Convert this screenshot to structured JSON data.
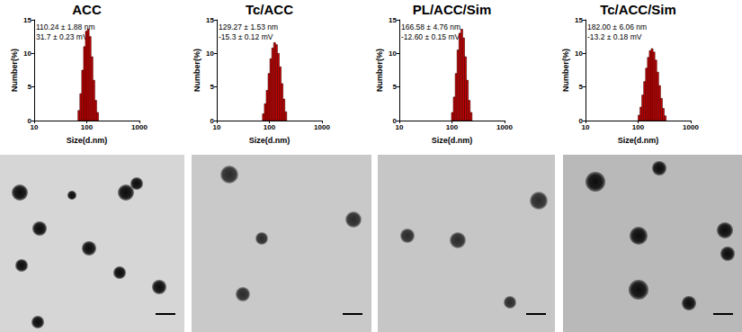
{
  "chart_data": [
    {
      "type": "histogram",
      "title": "ACC",
      "annotations": [
        "110.24 ± 1.88 nm",
        "31.7 ± 0.23 mV"
      ],
      "xlabel": "Size(d.nm)",
      "ylabel": "Number(%)",
      "bins": [
        68,
        73.8,
        80.1,
        86.9,
        94.2,
        102.2,
        110.9,
        120.4,
        130.6,
        141.7,
        153.7,
        166.8
      ],
      "values": [
        1.5,
        4.0,
        7.5,
        11.0,
        13.3,
        13.6,
        12.5,
        9.5,
        6.0,
        3.0,
        1.2
      ],
      "color": "#cc0000",
      "log": "x",
      "grid": false,
      "xlim": [
        10,
        1000
      ],
      "xticks": [
        10,
        100,
        1000
      ],
      "ylim": [
        0,
        15
      ],
      "yticks": [
        0,
        5,
        10,
        15
      ]
    },
    {
      "type": "histogram",
      "title": "Tc/ACC",
      "annotations": [
        "129.27 ± 1.53 nm",
        "-15.3 ± 0.12 mV"
      ],
      "xlabel": "Size(d.nm)",
      "ylabel": "Number(%)",
      "bins": [
        74,
        80.3,
        87.1,
        94.5,
        102.5,
        111.2,
        120.7,
        130.9,
        142.0,
        154.1,
        167.2,
        181.4,
        196.8,
        213.5
      ],
      "values": [
        1.0,
        2.5,
        4.5,
        7.0,
        9.2,
        10.8,
        11.6,
        11.3,
        10.0,
        8.0,
        5.5,
        3.2,
        1.3
      ],
      "color": "#cc0000",
      "log": "x",
      "grid": false,
      "xlim": [
        10,
        1000
      ],
      "xticks": [
        10,
        100,
        1000
      ],
      "ylim": [
        0,
        15
      ],
      "yticks": [
        0,
        5,
        10,
        15
      ]
    },
    {
      "type": "histogram",
      "title": "PL/ACC/Sim",
      "annotations": [
        "166.58 ± 4.76 nm",
        "-12.60 ± 0.15 mV"
      ],
      "xlabel": "Size(d.nm)",
      "ylabel": "Number(%)",
      "bins": [
        98,
        106.3,
        115.4,
        125.2,
        135.8,
        147.4,
        159.9,
        173.5,
        188.2,
        204.2,
        221.6,
        240.4
      ],
      "values": [
        1.2,
        3.5,
        7.0,
        10.5,
        13.0,
        13.6,
        12.3,
        9.5,
        6.0,
        3.0,
        1.2
      ],
      "color": "#cc0000",
      "log": "x",
      "grid": false,
      "xlim": [
        10,
        1000
      ],
      "xticks": [
        10,
        100,
        1000
      ],
      "ylim": [
        0,
        15
      ],
      "yticks": [
        0,
        5,
        10,
        15
      ]
    },
    {
      "type": "histogram",
      "title": "Tc/ACC/Sim",
      "annotations": [
        "182.00 ± 6.06 nm",
        "-13.2 ± 0.18 mV"
      ],
      "xlabel": "Size(d.nm)",
      "ylabel": "Number(%)",
      "bins": [
        100,
        108.5,
        117.7,
        127.7,
        138.6,
        150.4,
        163.1,
        177.0,
        192.1,
        208.4,
        226.1,
        245.3,
        266.2,
        288.8,
        313.3,
        340
      ],
      "values": [
        0.8,
        2.0,
        3.8,
        5.8,
        7.8,
        9.4,
        10.4,
        10.7,
        10.2,
        9.0,
        7.2,
        5.2,
        3.3,
        1.8,
        0.7
      ],
      "color": "#cc0000",
      "log": "x",
      "grid": false,
      "xlim": [
        10,
        1000
      ],
      "xticks": [
        10,
        100,
        1000
      ],
      "ylim": [
        0,
        15
      ],
      "yticks": [
        0,
        5,
        10,
        15
      ]
    }
  ]
}
